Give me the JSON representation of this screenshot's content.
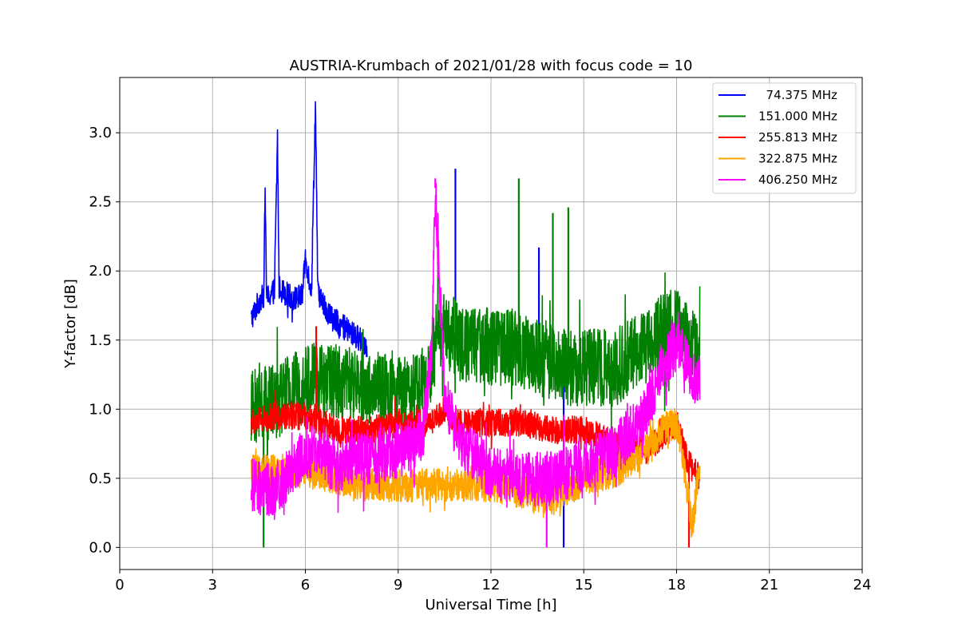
{
  "chart_data": {
    "type": "line",
    "title": "AUSTRIA-Krumbach of 2021/01/28 with focus code = 10",
    "xlabel": "Universal Time [h]",
    "ylabel": "Y-factor [dB]",
    "xlim": [
      0,
      24
    ],
    "ylim": [
      -0.16,
      3.4
    ],
    "xticks": [
      0,
      3,
      6,
      9,
      12,
      15,
      18,
      21,
      24
    ],
    "xtick_labels": [
      "0",
      "3",
      "6",
      "9",
      "12",
      "15",
      "18",
      "21",
      "24"
    ],
    "yticks": [
      0.0,
      0.5,
      1.0,
      1.5,
      2.0,
      2.5,
      3.0
    ],
    "ytick_labels": [
      "0.0",
      "0.5",
      "1.0",
      "1.5",
      "2.0",
      "2.5",
      "3.0"
    ],
    "grid": true,
    "legend_position": "top-right",
    "series": [
      {
        "name": "  74.375 MHz",
        "color": "#0000ff",
        "x": [
          4.25,
          4.5,
          4.65,
          4.7,
          4.75,
          5.0,
          5.1,
          5.15,
          5.3,
          5.6,
          5.9,
          6.0,
          6.2,
          6.27,
          6.33,
          6.4,
          6.6,
          6.9,
          7.2,
          7.5,
          7.8,
          8.0
        ],
        "y": [
          1.65,
          1.78,
          1.82,
          2.58,
          1.8,
          1.86,
          2.97,
          1.88,
          1.85,
          1.8,
          1.82,
          2.1,
          1.85,
          2.64,
          3.23,
          1.85,
          1.75,
          1.65,
          1.6,
          1.55,
          1.5,
          1.45
        ],
        "spikes": [
          {
            "x": 10.85,
            "y": 2.74
          },
          {
            "x": 13.55,
            "y": 2.17
          },
          {
            "x": 14.35,
            "y": 0.0
          }
        ]
      },
      {
        "name": "151.000 MHz",
        "color": "#008000",
        "x": [
          4.25,
          5.0,
          6.0,
          7.0,
          8.0,
          9.0,
          10.0,
          10.3,
          11.0,
          12.0,
          12.9,
          13.0,
          14.0,
          14.5,
          15.0,
          16.0,
          17.0,
          17.5,
          18.0,
          18.5,
          18.75
        ],
        "y": [
          1.0,
          1.05,
          1.2,
          1.2,
          1.15,
          1.1,
          1.2,
          1.6,
          1.5,
          1.45,
          1.45,
          1.4,
          1.35,
          1.3,
          1.3,
          1.3,
          1.45,
          1.55,
          1.6,
          1.45,
          1.3
        ],
        "spikes": [
          {
            "x": 12.9,
            "y": 2.67
          },
          {
            "x": 14.5,
            "y": 2.46
          },
          {
            "x": 14.0,
            "y": 2.42
          },
          {
            "x": 4.65,
            "y": 0.0
          }
        ]
      },
      {
        "name": "255.813 MHz",
        "color": "#ff0000",
        "x": [
          4.25,
          5.0,
          6.0,
          7.0,
          8.0,
          9.0,
          10.0,
          10.5,
          11.0,
          12.0,
          13.0,
          14.0,
          15.0,
          16.0,
          17.0,
          17.5,
          18.0,
          18.4,
          18.75
        ],
        "y": [
          0.9,
          0.95,
          0.95,
          0.85,
          0.85,
          0.9,
          0.9,
          1.0,
          0.9,
          0.9,
          0.9,
          0.85,
          0.85,
          0.75,
          0.7,
          0.8,
          0.9,
          0.6,
          0.5
        ],
        "spikes": [
          {
            "x": 6.35,
            "y": 1.6
          },
          {
            "x": 18.4,
            "y": 0.0
          }
        ]
      },
      {
        "name": "322.875 MHz",
        "color": "#ffa500",
        "x": [
          4.25,
          5.0,
          6.0,
          7.0,
          8.0,
          9.0,
          10.0,
          11.0,
          12.0,
          13.0,
          14.0,
          14.5,
          15.0,
          16.0,
          17.0,
          17.5,
          18.0,
          18.3,
          18.5,
          18.75
        ],
        "y": [
          0.55,
          0.55,
          0.55,
          0.5,
          0.45,
          0.45,
          0.45,
          0.45,
          0.45,
          0.4,
          0.35,
          0.4,
          0.5,
          0.55,
          0.7,
          0.85,
          0.9,
          0.5,
          0.15,
          0.6
        ],
        "spikes": []
      },
      {
        "name": "406.250 MHz",
        "color": "#ff00ff",
        "x": [
          4.25,
          5.0,
          5.5,
          6.0,
          7.0,
          8.0,
          9.0,
          9.8,
          10.1,
          10.2,
          10.5,
          11.0,
          12.0,
          13.0,
          14.0,
          15.0,
          16.0,
          17.0,
          17.5,
          18.0,
          18.5,
          18.75
        ],
        "y": [
          0.45,
          0.4,
          0.55,
          0.7,
          0.6,
          0.65,
          0.7,
          0.8,
          1.5,
          2.6,
          1.1,
          0.75,
          0.55,
          0.5,
          0.5,
          0.6,
          0.7,
          0.95,
          1.3,
          1.45,
          1.25,
          1.2
        ],
        "spikes": [
          {
            "x": 10.2,
            "y": 2.67
          },
          {
            "x": 13.8,
            "y": 0.0
          }
        ]
      }
    ]
  }
}
